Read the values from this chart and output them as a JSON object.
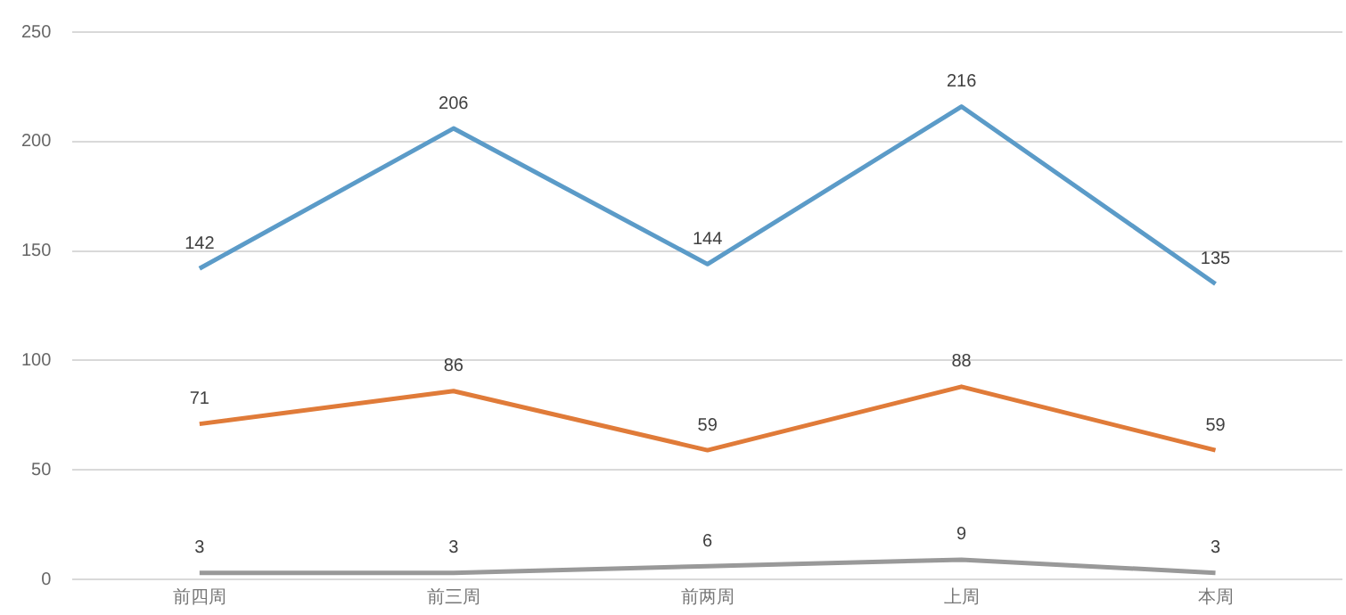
{
  "chart_data": {
    "type": "line",
    "categories": [
      "前四周",
      "前三周",
      "前两周",
      "上周",
      "本周"
    ],
    "series": [
      {
        "color": "#5b9bc8",
        "values": [
          142,
          206,
          144,
          216,
          135
        ]
      },
      {
        "color": "#e07b39",
        "values": [
          71,
          86,
          59,
          88,
          59
        ]
      },
      {
        "color": "#999999",
        "values": [
          3,
          3,
          6,
          9,
          3
        ]
      }
    ],
    "ylim": [
      0,
      250
    ],
    "yticks": [
      0,
      50,
      100,
      150,
      200,
      250
    ],
    "grid": "y",
    "data_labels": true,
    "legend": false,
    "marker": "none"
  }
}
